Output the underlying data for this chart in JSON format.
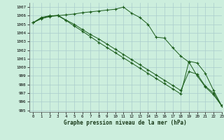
{
  "title": "Graphe pression niveau de la mer (hPa)",
  "background_color": "#cceedd",
  "grid_color": "#aacccc",
  "line_color": "#1a5c1a",
  "xlim": [
    -0.5,
    23
  ],
  "ylim": [
    994.8,
    1007.5
  ],
  "yticks": [
    995,
    996,
    997,
    998,
    999,
    1000,
    1001,
    1002,
    1003,
    1004,
    1005,
    1006,
    1007
  ],
  "xticks": [
    0,
    1,
    2,
    3,
    4,
    5,
    6,
    7,
    8,
    9,
    10,
    11,
    12,
    13,
    14,
    15,
    16,
    17,
    18,
    19,
    20,
    21,
    22,
    23
  ],
  "s1": [
    1005.2,
    1005.8,
    1006.0,
    1006.0,
    1006.1,
    1006.2,
    1006.35,
    1006.45,
    1006.55,
    1006.65,
    1006.75,
    1007.0,
    1006.3,
    1005.8,
    1005.0,
    1003.5,
    1003.4,
    1002.3,
    1001.3,
    1000.6,
    999.0,
    997.7,
    996.8,
    995.5
  ],
  "s2": [
    1005.2,
    1005.7,
    1005.95,
    1006.05,
    1005.5,
    1005.0,
    1004.4,
    1003.8,
    1003.3,
    1002.7,
    1002.1,
    1001.5,
    1000.9,
    1000.3,
    999.7,
    999.1,
    998.5,
    997.9,
    997.3,
    999.5,
    999.2,
    997.8,
    997.0,
    995.5
  ],
  "s3": [
    1005.2,
    1005.65,
    1005.9,
    1006.0,
    1005.45,
    1004.8,
    1004.2,
    1003.55,
    1002.9,
    1002.3,
    1001.7,
    1001.1,
    1000.5,
    999.9,
    999.3,
    998.7,
    998.1,
    997.5,
    996.9,
    1000.7,
    1000.5,
    999.3,
    997.3,
    995.5
  ]
}
